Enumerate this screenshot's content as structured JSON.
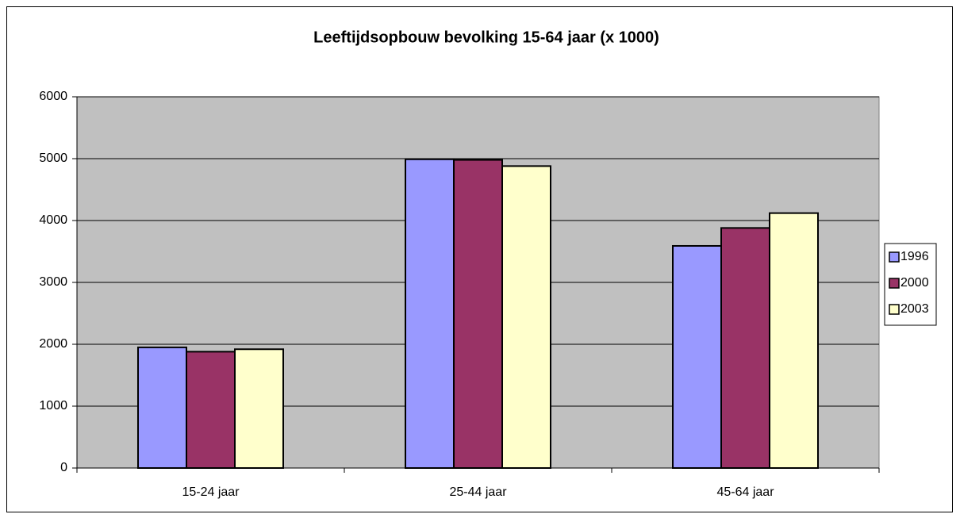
{
  "chart_data": {
    "type": "bar",
    "title": "Leeftijdsopbouw bevolking 15-64 jaar (x 1000)",
    "categories": [
      "15-24 jaar",
      "25-44 jaar",
      "45-64 jaar"
    ],
    "series": [
      {
        "name": "1996",
        "color": "#9999ff",
        "values": [
          1950,
          4990,
          3590
        ]
      },
      {
        "name": "2000",
        "color": "#993366",
        "values": [
          1880,
          4980,
          3880
        ]
      },
      {
        "name": "2003",
        "color": "#ffffcc",
        "values": [
          1920,
          4880,
          4120
        ]
      }
    ],
    "ylim": [
      0,
      6000
    ],
    "yticks": [
      0,
      1000,
      2000,
      3000,
      4000,
      5000,
      6000
    ],
    "grid": true,
    "legend": "right"
  }
}
